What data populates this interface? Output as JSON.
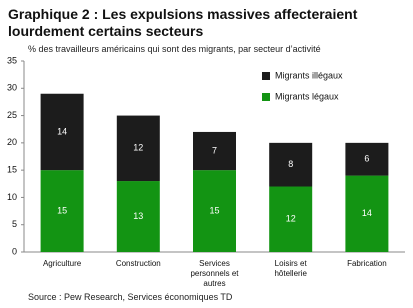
{
  "chart_data": {
    "type": "stacked_bar",
    "title": "Graphique 2 : Les expulsions massives affecteraient lourdement certains secteurs",
    "subtitle": "% des travailleurs américains qui sont des migrants, par secteur d’activité",
    "source": "Source : Pew Research, Services économiques TD",
    "categories": [
      "Agriculture",
      "Construction",
      "Services personnels et autres",
      "Loisirs et hôtellerie",
      "Fabrication"
    ],
    "series": [
      {
        "name": "Migrants légaux",
        "color": "#139413",
        "values": [
          15,
          13,
          15,
          12,
          14
        ]
      },
      {
        "name": "Migrants illégaux",
        "color": "#1c1c1c",
        "values": [
          14,
          12,
          7,
          8,
          6
        ]
      }
    ],
    "ylim": [
      0,
      35
    ],
    "yticks": [
      0,
      5,
      10,
      15,
      20,
      25,
      30,
      35
    ],
    "legend": "top-right"
  }
}
